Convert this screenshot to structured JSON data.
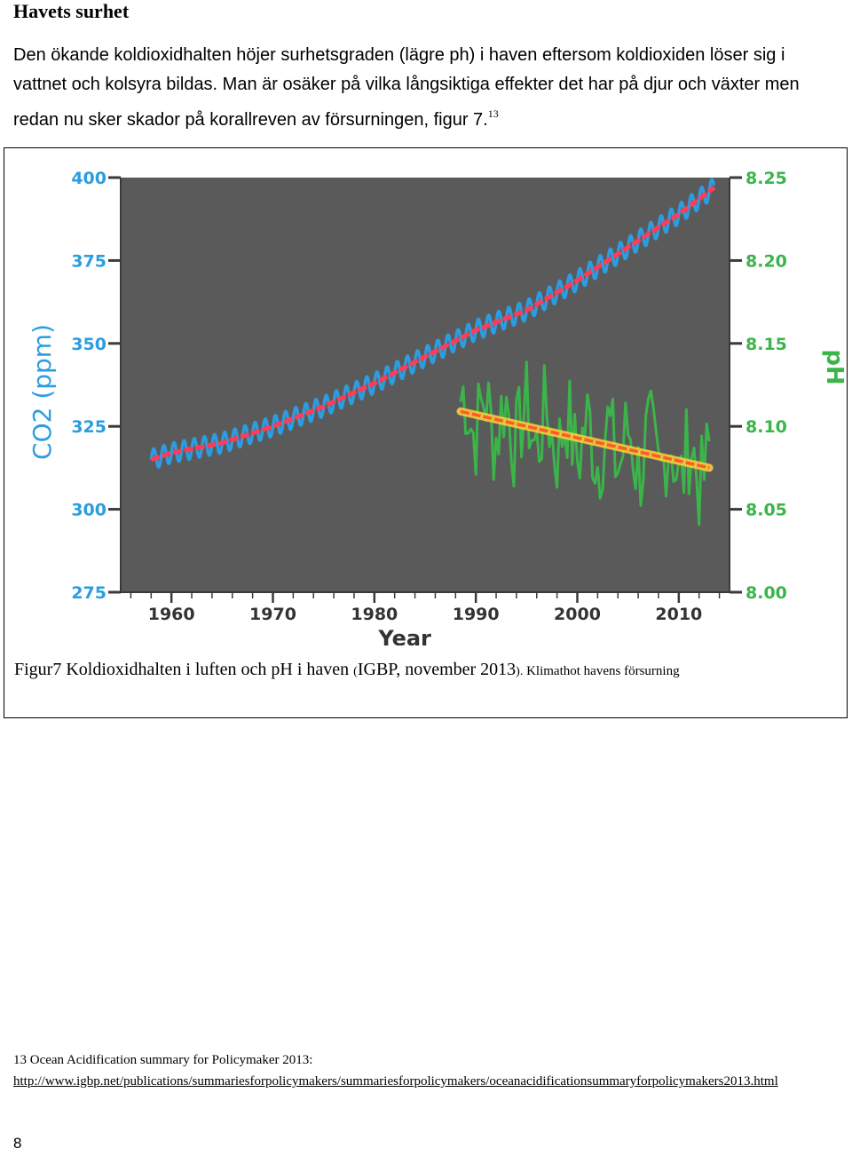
{
  "heading": "Havets surhet",
  "paragraph": "Den ökande koldioxidhalten höjer surhetsgraden (lägre ph) i haven eftersom koldioxiden löser sig i vattnet och kolsyra bildas. Man är osäker på vilka långsiktiga effekter det har på djur och växter men redan nu sker skador på korallreven av försurningen, figur 7.",
  "paragraph_ref": "13",
  "figure": {
    "caption_main": "Figur7 Koldioxidhalten i luften och pH i haven ",
    "caption_paren_open": "(",
    "caption_source": "IGBP, november 2013",
    "caption_paren_close": ").",
    "caption_tail": " Klimathot havens försurning"
  },
  "chart_data": {
    "type": "line",
    "xlabel": "Year",
    "ylabel_left": "CO2 (ppm)",
    "ylabel_right": "pH",
    "x_ticks": [
      "1960",
      "1970",
      "1980",
      "1990",
      "2000",
      "2010"
    ],
    "y_left_ticks": [
      "400",
      "375",
      "350",
      "325",
      "300",
      "275"
    ],
    "y_right_ticks": [
      "8.25",
      "8.20",
      "8.15",
      "8.10",
      "8.05",
      "8.00"
    ],
    "xlim": [
      1955,
      2015
    ],
    "ylim_left": [
      275,
      400
    ],
    "ylim_right": [
      8.0,
      8.25
    ],
    "colors": {
      "background": "#5a5a5a",
      "co2_axis": "#2b9de0",
      "ph_axis": "#3bb54a",
      "co2_measured": "#2b9de0",
      "co2_trend": "#ff3b57",
      "ph_measured": "#3bb54a",
      "ph_trend": "#ff5a2a",
      "ph_trend_glow": "#ffd23a"
    },
    "series": [
      {
        "axis": "left",
        "x": [
          1958,
          1960,
          1965,
          1970,
          1975,
          1980,
          1985,
          1990,
          1995,
          2000,
          2005,
          2010,
          2013.5
        ],
        "values": [
          315,
          317,
          320,
          325,
          331,
          338,
          346,
          354,
          360,
          369,
          379,
          389,
          397
        ],
        "seasonal_amplitude": 3
      },
      {
        "axis": "right",
        "x": [
          1988.5,
          2013
        ],
        "values": [
          8.109,
          8.075
        ]
      }
    ]
  },
  "footnote": {
    "text": "13 Ocean Acidification summary for Policymaker 2013:",
    "link": "http://www.igbp.net/publications/summariesforpolicymakers/summariesforpolicymakers/oceanacidificationsummaryforpolicymakers2013.html"
  },
  "page_number": "8"
}
